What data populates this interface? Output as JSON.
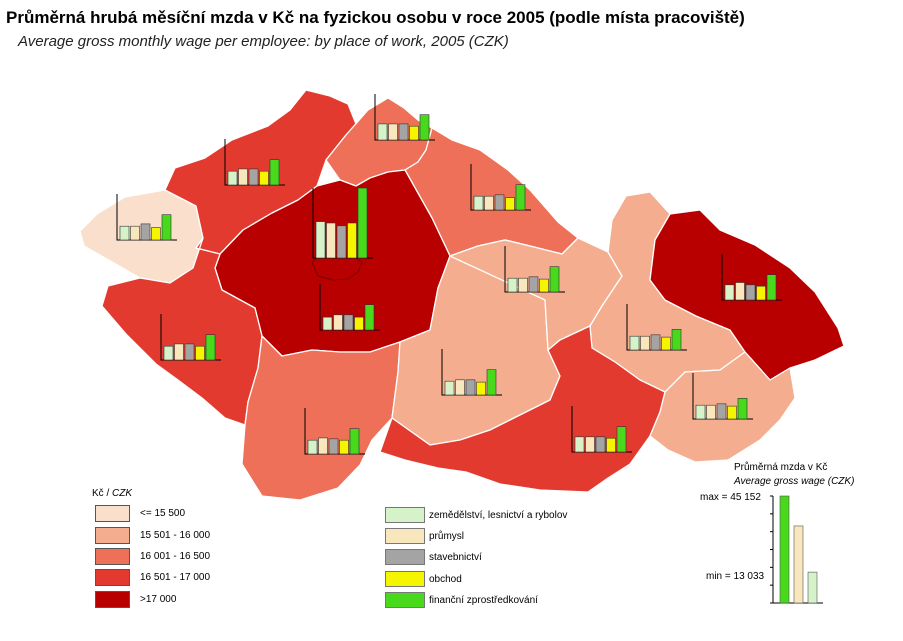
{
  "title": "Průměrná hrubá měsíční mzda v Kč na fyzickou osobu v roce 2005 (podle místa pracoviště)",
  "subtitle": "Average gross monthly wage per employee: by place of work, 2005 (CZK)",
  "legend": {
    "title_plain": "Kč / ",
    "title_italic": "CZK",
    "classes": [
      {
        "label": "<= 15 500",
        "color": "#f9dfcc"
      },
      {
        "label": "15 501 - 16 000",
        "color": "#f4ad8e"
      },
      {
        "label": "16 001 - 16 500",
        "color": "#ee7058"
      },
      {
        "label": "16 501 - 17 000",
        "color": "#e23a2f"
      },
      {
        "label": ">17 000",
        "color": "#b80000"
      }
    ],
    "categories": [
      {
        "label": "zemědělství, lesnictví a rybolov",
        "color": "#d5f2c8"
      },
      {
        "label": "průmysl",
        "color": "#f8e6bd"
      },
      {
        "label": "stavebnictví",
        "color": "#a4a4a4"
      },
      {
        "label": "obchod",
        "color": "#f5f500"
      },
      {
        "label": "finanční zprostředkování",
        "color": "#48d81c"
      }
    ]
  },
  "mini_chart": {
    "title": "Průměrná mzda v Kč",
    "subtitle": "Average gross wage (CZK)",
    "max_label": "max = 45 152",
    "min_label": "min = 13 033",
    "max_value": 45152,
    "min_value": 13033
  },
  "regions": [
    {
      "id": "karlovarsky",
      "class": 1
    },
    {
      "id": "ustecky",
      "class": 4
    },
    {
      "id": "liberecky",
      "class": 3
    },
    {
      "id": "kralovehradecky",
      "class": 3
    },
    {
      "id": "stredocesky",
      "class": 5
    },
    {
      "id": "praha",
      "class": 5
    },
    {
      "id": "plzensky",
      "class": 4
    },
    {
      "id": "jihocesky",
      "class": 3
    },
    {
      "id": "vysocina",
      "class": 2
    },
    {
      "id": "pardubicky",
      "class": 2
    },
    {
      "id": "olomoucky",
      "class": 2
    },
    {
      "id": "moravskoslezsky",
      "class": 5
    },
    {
      "id": "jihomoravsky",
      "class": 4
    },
    {
      "id": "zlinsky",
      "class": 2
    }
  ],
  "region_charts": [
    {
      "id": "karlovarsky",
      "values": [
        0.3,
        0.3,
        0.35,
        0.27,
        0.55
      ]
    },
    {
      "id": "ustecky",
      "values": [
        0.3,
        0.35,
        0.35,
        0.3,
        0.55
      ]
    },
    {
      "id": "liberecky",
      "values": [
        0.35,
        0.35,
        0.35,
        0.3,
        0.55
      ]
    },
    {
      "id": "kralovehradecky",
      "values": [
        0.3,
        0.3,
        0.33,
        0.27,
        0.55
      ]
    },
    {
      "id": "praha",
      "values": [
        0.52,
        0.5,
        0.46,
        0.5,
        1.0
      ]
    },
    {
      "id": "stredocesky",
      "values": [
        0.28,
        0.33,
        0.33,
        0.28,
        0.55
      ]
    },
    {
      "id": "plzensky",
      "values": [
        0.3,
        0.35,
        0.35,
        0.3,
        0.55
      ]
    },
    {
      "id": "jihocesky",
      "values": [
        0.3,
        0.35,
        0.33,
        0.3,
        0.55
      ]
    },
    {
      "id": "vysocina",
      "values": [
        0.3,
        0.33,
        0.33,
        0.28,
        0.55
      ]
    },
    {
      "id": "pardubicky",
      "values": [
        0.3,
        0.3,
        0.33,
        0.28,
        0.55
      ]
    },
    {
      "id": "olomoucky",
      "values": [
        0.3,
        0.3,
        0.33,
        0.28,
        0.45
      ]
    },
    {
      "id": "moravskoslezsky",
      "values": [
        0.33,
        0.38,
        0.33,
        0.3,
        0.55
      ]
    },
    {
      "id": "jihomoravsky",
      "values": [
        0.33,
        0.33,
        0.33,
        0.3,
        0.55
      ]
    },
    {
      "id": "zlinsky",
      "values": [
        0.3,
        0.3,
        0.33,
        0.28,
        0.45
      ]
    }
  ]
}
